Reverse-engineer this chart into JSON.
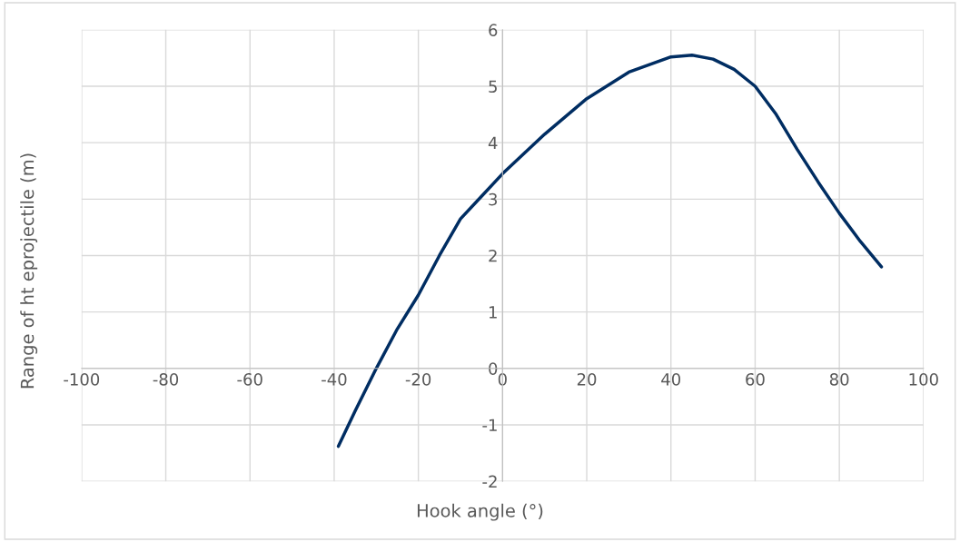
{
  "chart_data": {
    "type": "line",
    "xlabel": "Hook angle (°)",
    "ylabel": "Range of ht eprojectile (m)",
    "x": [
      -39,
      -35,
      -30,
      -25,
      -20,
      -15,
      -10,
      -5,
      0,
      10,
      20,
      30,
      40,
      45,
      50,
      55,
      60,
      65,
      70,
      75,
      80,
      85,
      90
    ],
    "series": [
      {
        "color": "#002d62",
        "values": [
          -1.38,
          -0.75,
          0.0,
          0.7,
          1.3,
          2.0,
          2.65,
          3.05,
          3.45,
          4.15,
          4.78,
          5.25,
          5.52,
          5.55,
          5.48,
          5.3,
          5.0,
          4.5,
          3.88,
          3.3,
          2.75,
          2.25,
          1.8
        ]
      }
    ],
    "xlim": [
      -100,
      100
    ],
    "xticks": [
      -100,
      -80,
      -60,
      -40,
      -20,
      0,
      20,
      40,
      60,
      80,
      100
    ],
    "ylim": [
      -2,
      6
    ],
    "yticks": [
      -2,
      -1,
      0,
      1,
      2,
      3,
      4,
      5,
      6
    ],
    "grid": true,
    "legend": false,
    "marker": "none",
    "line_style": "solid"
  }
}
